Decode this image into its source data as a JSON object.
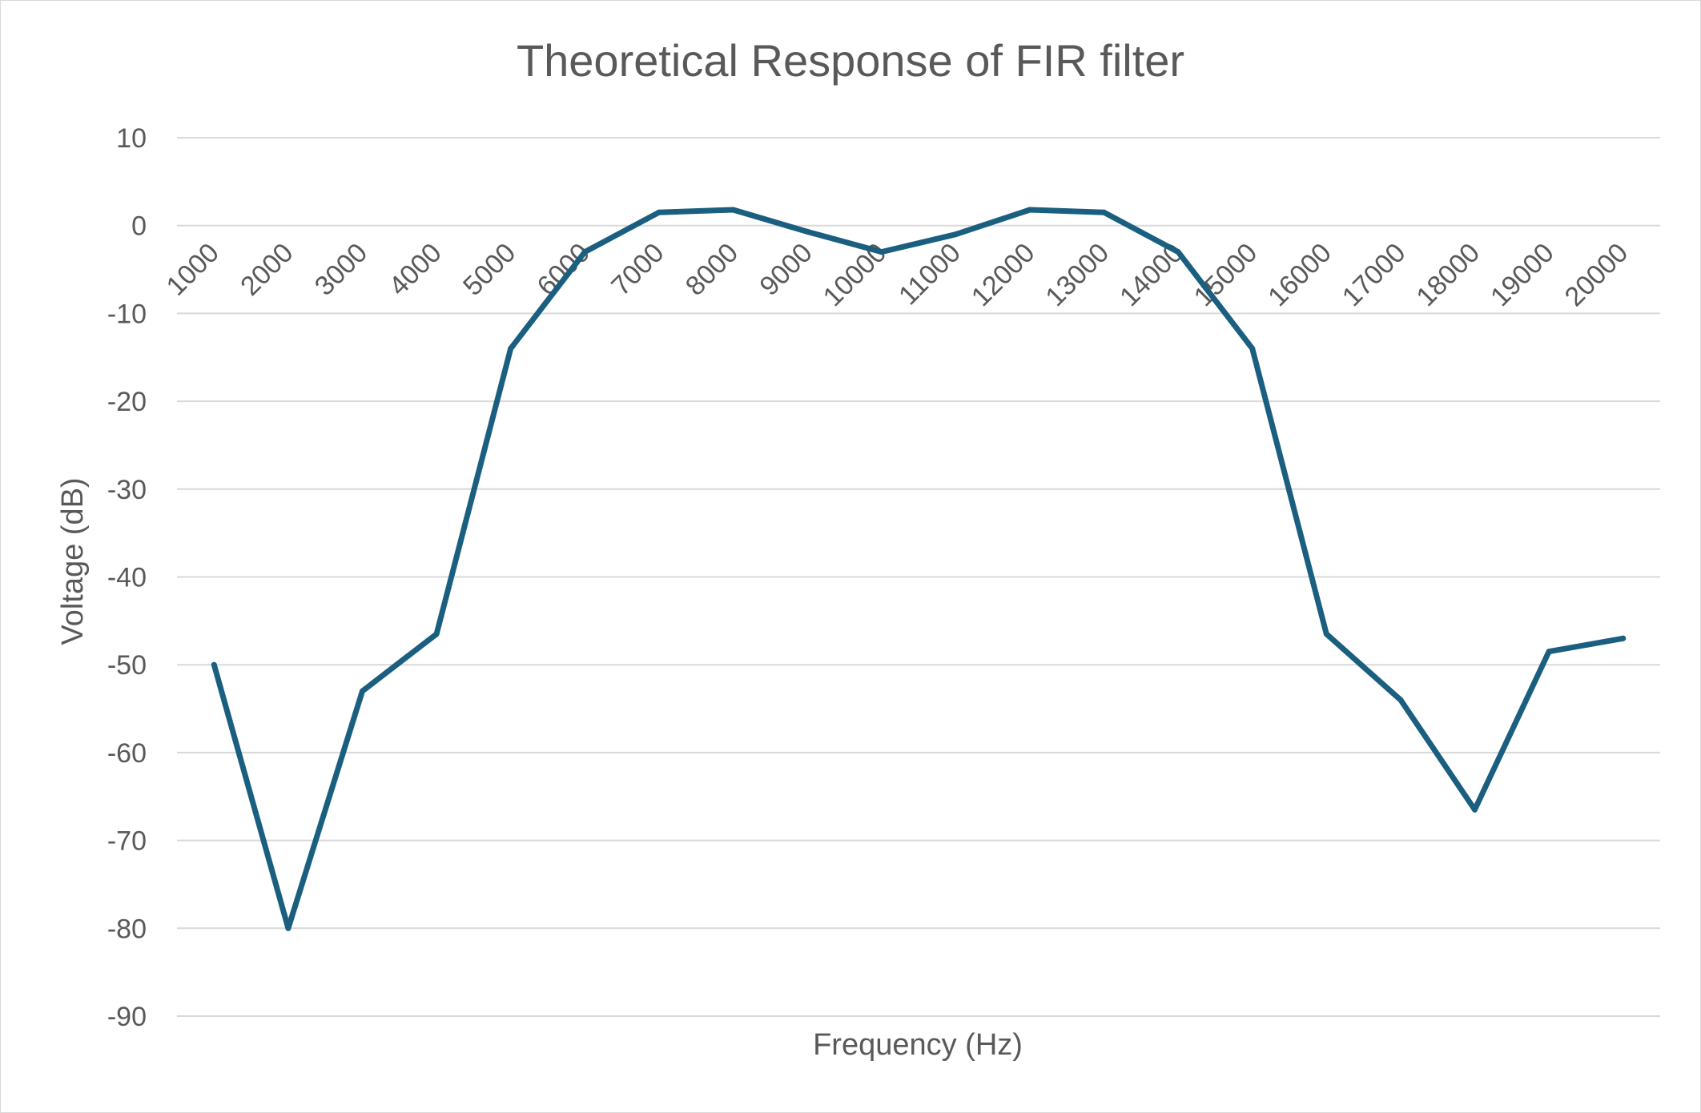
{
  "chart_data": {
    "type": "line",
    "title": "Theoretical Response of FIR filter",
    "xlabel": "Frequency (Hz)",
    "ylabel": "Voltage (dB)",
    "ylim": [
      -90,
      10
    ],
    "yticks": [
      "10",
      "0",
      "-10",
      "-20",
      "-30",
      "-40",
      "-50",
      "-60",
      "-70",
      "-80",
      "-90"
    ],
    "categories": [
      "1000",
      "2000",
      "3000",
      "4000",
      "5000",
      "6000",
      "7000",
      "8000",
      "9000",
      "10000",
      "11000",
      "12000",
      "13000",
      "14000",
      "15000",
      "16000",
      "17000",
      "18000",
      "19000",
      "20000"
    ],
    "grid": true,
    "legend": "none",
    "series": [
      {
        "color": "#1a5f80",
        "values": [
          -50,
          -80,
          -53,
          -46.5,
          -14,
          -3,
          1.5,
          1.8,
          -0.7,
          -3,
          -1,
          1.8,
          1.5,
          -3,
          -14,
          -46.5,
          -54,
          -66.5,
          -48.5,
          -47
        ]
      }
    ]
  }
}
